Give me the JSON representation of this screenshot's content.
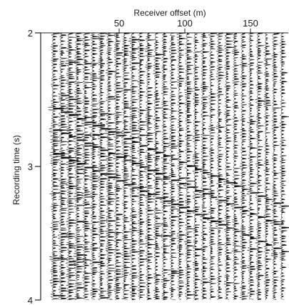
{
  "chart_data": {
    "type": "seismic-wiggle",
    "xlabel": "Receiver offset (m)",
    "ylabel": "Recording time (s)",
    "x_axis_position": "top",
    "xlim": [
      0,
      210
    ],
    "ylim": [
      2,
      4
    ],
    "y_inverted": true,
    "x_ticks": [
      50,
      100,
      150,
      200
    ],
    "y_ticks": [
      2,
      3,
      4
    ],
    "trace_count": 36,
    "trace_spacing_m": 6,
    "grid": false,
    "legend": "none",
    "colors": {
      "ink": "#111111",
      "axis": "#222222",
      "background": "#ffffff"
    }
  }
}
